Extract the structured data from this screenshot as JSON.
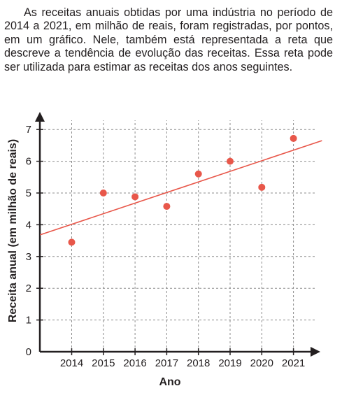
{
  "intro_text": "As receitas anuais obtidas por uma indústria no período de 2014 a 2021, em milhão de reais, foram registradas, por pontos, em um gráfico. Nele, também está representada a reta que descreve a tendência de evolução das receitas. Essa reta pode ser utilizada para estimar as receitas dos anos seguintes.",
  "chart_data": {
    "type": "scatter",
    "title": "",
    "xlabel": "Ano",
    "ylabel": "Receita anual (em milhão de reais)",
    "categories": [
      "2014",
      "2015",
      "2016",
      "2017",
      "2018",
      "2019",
      "2020",
      "2021"
    ],
    "y_ticks": [
      "0",
      "1",
      "2",
      "3",
      "4",
      "5",
      "6",
      "7"
    ],
    "ylim": [
      0,
      7
    ],
    "grid": true,
    "points": [
      {
        "x": "2014",
        "y": 3.45
      },
      {
        "x": "2015",
        "y": 5.0
      },
      {
        "x": "2016",
        "y": 4.88
      },
      {
        "x": "2017",
        "y": 4.58
      },
      {
        "x": "2018",
        "y": 5.6
      },
      {
        "x": "2019",
        "y": 6.0
      },
      {
        "x": "2020",
        "y": 5.18
      },
      {
        "x": "2021",
        "y": 6.72
      }
    ],
    "trend_line": {
      "x_start": "2013",
      "y_start": 3.68,
      "x_end": "2021.9",
      "y_end": 6.65
    },
    "colors": {
      "points": "#e8574a",
      "line": "#e8574a",
      "axes": "#231f20",
      "grid": "#8c8c8c"
    }
  }
}
